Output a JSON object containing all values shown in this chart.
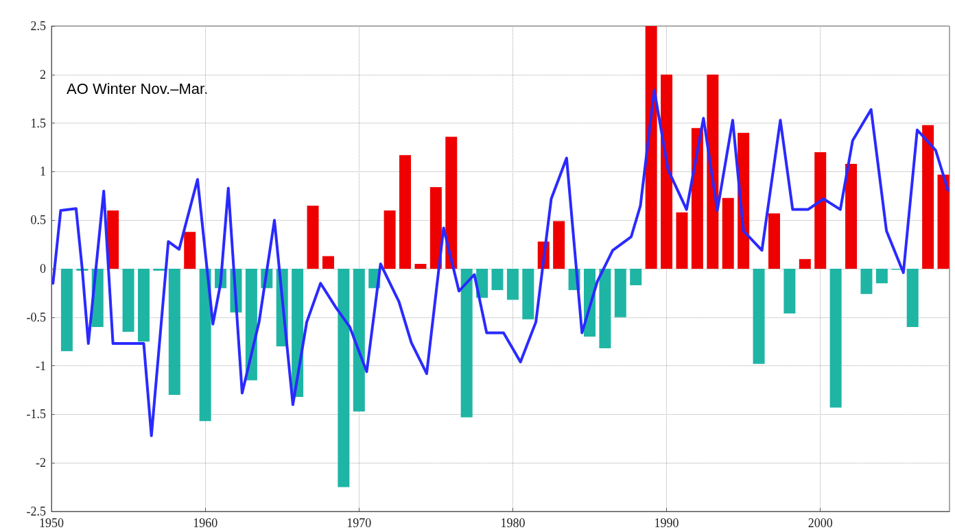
{
  "chart_data": {
    "type": "bar",
    "annotations": [
      "AO Winter Nov.–Mar."
    ],
    "xlim": [
      1950,
      2008.4
    ],
    "xticks": [
      1950,
      1960,
      1970,
      1980,
      1990,
      2000
    ],
    "ylim": [
      -2.5,
      2.5
    ],
    "yticks": [
      -2.5,
      -2,
      -1.5,
      -1,
      -0.5,
      0,
      0.5,
      1,
      1.5,
      2,
      2.5
    ],
    "grid": true,
    "line_style": "solid",
    "series": [
      {
        "x": [
          1951,
          1952,
          1953,
          1954,
          1955,
          1956,
          1957,
          1958,
          1959,
          1960,
          1961,
          1962,
          1963,
          1964,
          1965,
          1966,
          1967,
          1968,
          1969,
          1970,
          1971,
          1972,
          1973,
          1974,
          1975,
          1976,
          1977,
          1978,
          1979,
          1980,
          1981,
          1982,
          1983,
          1984,
          1985,
          1986,
          1987,
          1988,
          1989,
          1990,
          1991,
          1992,
          1993,
          1994,
          1995,
          1996,
          1997,
          1998,
          1999,
          2000,
          2001,
          2002,
          2003,
          2004,
          2005,
          2006,
          2007,
          2008
        ],
        "values": [
          -0.85,
          -0.02,
          -0.6,
          0.6,
          -0.65,
          -0.75,
          -0.02,
          -1.3,
          0.38,
          -1.57,
          -0.2,
          -0.45,
          -1.15,
          -0.2,
          -0.8,
          -1.32,
          0.65,
          0.13,
          -2.25,
          -1.47,
          -0.2,
          0.6,
          1.17,
          0.05,
          0.84,
          1.36,
          -1.53,
          -0.3,
          -0.22,
          -0.32,
          -0.52,
          0.28,
          0.49,
          -0.22,
          -0.7,
          -0.82,
          -0.5,
          -0.17,
          2.5,
          2.0,
          0.58,
          1.45,
          2.0,
          0.73,
          1.4,
          -0.98,
          0.57,
          -0.46,
          0.1,
          1.2,
          -1.43,
          1.08,
          -0.26,
          -0.15,
          -0.01,
          -0.6,
          1.48,
          0.97
        ],
        "colors": [
          "#1fb5a5",
          "#1fb5a5",
          "#1fb5a5",
          "#ee0000",
          "#1fb5a5",
          "#1fb5a5",
          "#1fb5a5",
          "#1fb5a5",
          "#ee0000",
          "#1fb5a5",
          "#1fb5a5",
          "#1fb5a5",
          "#1fb5a5",
          "#1fb5a5",
          "#1fb5a5",
          "#1fb5a5",
          "#ee0000",
          "#ee0000",
          "#1fb5a5",
          "#1fb5a5",
          "#1fb5a5",
          "#ee0000",
          "#ee0000",
          "#ee0000",
          "#ee0000",
          "#ee0000",
          "#1fb5a5",
          "#1fb5a5",
          "#1fb5a5",
          "#1fb5a5",
          "#1fb5a5",
          "#ee0000",
          "#ee0000",
          "#1fb5a5",
          "#1fb5a5",
          "#1fb5a5",
          "#1fb5a5",
          "#1fb5a5",
          "#ee0000",
          "#ee0000",
          "#ee0000",
          "#ee0000",
          "#ee0000",
          "#ee0000",
          "#ee0000",
          "#1fb5a5",
          "#ee0000",
          "#1fb5a5",
          "#ee0000",
          "#ee0000",
          "#1fb5a5",
          "#ee0000",
          "#1fb5a5",
          "#1fb5a5",
          "#1fb5a5",
          "#1fb5a5",
          "#ee0000",
          "#ee0000"
        ]
      },
      {
        "type": "line",
        "color": "#2a2aff",
        "x": [
          1950.1,
          1950.6,
          1951.6,
          1952.0,
          1952.4,
          1953.4,
          1954.0,
          1956.0,
          1956.5,
          1957.6,
          1958.3,
          1959.5,
          1960.5,
          1961.0,
          1961.5,
          1962.4,
          1963.5,
          1964.5,
          1965.7,
          1966.6,
          1967.5,
          1968.5,
          1969.4,
          1970.5,
          1971.4,
          1972.6,
          1973.4,
          1974.4,
          1975.5,
          1976.5,
          1977.5,
          1978.3,
          1979.4,
          1980.5,
          1981.5,
          1982.5,
          1983.5,
          1984.5,
          1985.5,
          1986.5,
          1987.7,
          1988.3,
          1989.2,
          1990.1,
          1991.3,
          1992.4,
          1993.3,
          1994.3,
          1995.0,
          1996.2,
          1997.4,
          1998.2,
          1999.2,
          2000.2,
          2001.3,
          2002.1,
          2003.3,
          2004.3,
          2005.4,
          2006.3,
          2007.5,
          2008.3
        ],
        "values": [
          -0.15,
          0.6,
          0.62,
          0,
          -0.77,
          0.8,
          -0.77,
          -0.77,
          -1.72,
          0.28,
          0.2,
          0.92,
          -0.57,
          -0.15,
          0.83,
          -1.28,
          -0.55,
          0.5,
          -1.4,
          -0.55,
          -0.15,
          -0.4,
          -0.6,
          -1.06,
          0.05,
          -0.34,
          -0.76,
          -1.08,
          0.42,
          -0.23,
          -0.06,
          -0.66,
          -0.66,
          -0.96,
          -0.55,
          0.72,
          1.14,
          -0.66,
          -0.13,
          0.19,
          0.33,
          0.65,
          1.84,
          1.02,
          0.61,
          1.55,
          0.6,
          1.53,
          0.39,
          0.19,
          1.53,
          0.61,
          0.61,
          0.72,
          0.61,
          1.32,
          1.64,
          0.39,
          -0.04,
          1.43,
          1.22,
          0.81
        ]
      }
    ]
  }
}
